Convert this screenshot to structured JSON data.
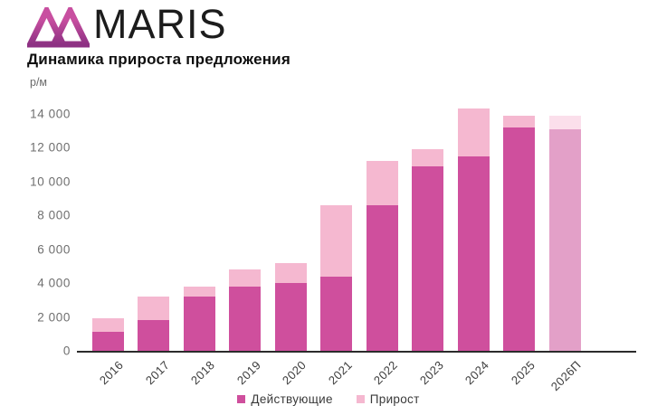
{
  "logo": {
    "brand": "MARIS",
    "mark_icon": "maris-logo-mark",
    "mark_colors": [
      "#c84fa0",
      "#8d3183"
    ]
  },
  "title": "Динамика прироста предложения",
  "chart_data": {
    "type": "bar",
    "stacked": true,
    "title": "Динамика прироста предложения",
    "xlabel": "",
    "ylabel": "р/м",
    "categories": [
      "2016",
      "2017",
      "2018",
      "2019",
      "2020",
      "2021",
      "2022",
      "2023",
      "2024",
      "2025",
      "2026П"
    ],
    "series": [
      {
        "name": "Действующие",
        "color": "#cf4f9d",
        "values": [
          1100,
          1800,
          3200,
          3800,
          4000,
          4400,
          8600,
          10900,
          11500,
          13200,
          13100
        ]
      },
      {
        "name": "Прирост",
        "color": "#f5b8d0",
        "values": [
          800,
          1400,
          600,
          1000,
          1200,
          4200,
          2600,
          1000,
          2800,
          700,
          800
        ]
      }
    ],
    "forecast_category": "2026П",
    "colors": {
      "existing": "#cf4f9d",
      "growth": "#f5b8d0",
      "forecast_existing": "#e3a0c8",
      "forecast_growth": "#fbdfeb",
      "axis_line": "#2b2b2b"
    },
    "ylim": [
      0,
      14000
    ],
    "y_ticks": [
      0,
      2000,
      4000,
      6000,
      8000,
      10000,
      12000,
      14000
    ],
    "y_tick_labels": [
      "0",
      "2 000",
      "4 000",
      "6 000",
      "8 000",
      "10 000",
      "12 000",
      "14 000"
    ],
    "grid": false,
    "legend_position": "bottom",
    "legend": [
      "Действующие",
      "Прирост"
    ]
  }
}
